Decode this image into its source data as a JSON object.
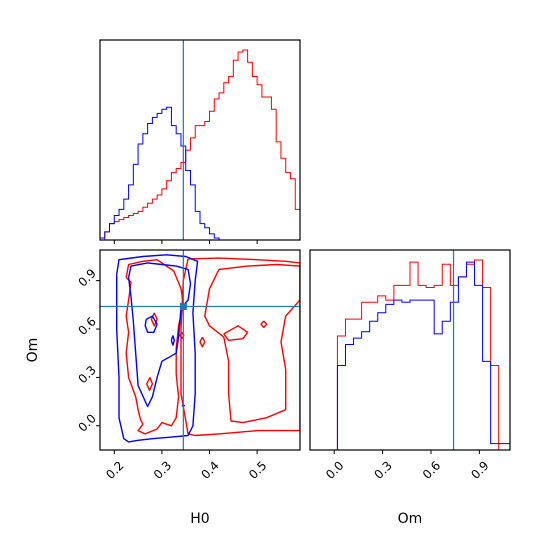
{
  "chart_data": {
    "type": "corner",
    "parameters": [
      "H0",
      "Om"
    ],
    "truth": {
      "H0": 0.345,
      "Om": 0.74
    },
    "colors": {
      "series_a": "#ff0000",
      "series_b": "#0000ff",
      "truth": "#1f77b4"
    },
    "panels": [
      {
        "id": "hist-h0",
        "type": "histogram",
        "xlim": [
          0.17,
          0.59
        ],
        "bin_edges": [
          0.17,
          0.18,
          0.19,
          0.2,
          0.21,
          0.22,
          0.23,
          0.24,
          0.25,
          0.26,
          0.27,
          0.28,
          0.29,
          0.3,
          0.31,
          0.32,
          0.33,
          0.34,
          0.35,
          0.36,
          0.37,
          0.38,
          0.39,
          0.4,
          0.41,
          0.42,
          0.43,
          0.44,
          0.45,
          0.46,
          0.47,
          0.48,
          0.49,
          0.5,
          0.51,
          0.52,
          0.53,
          0.54,
          0.55,
          0.56,
          0.57,
          0.58,
          0.59
        ],
        "series": [
          {
            "name": "",
            "color": "#ff0000",
            "counts": [
              0.0,
              0.04,
              0.08,
              0.09,
              0.1,
              0.11,
              0.12,
              0.13,
              0.14,
              0.16,
              0.18,
              0.2,
              0.22,
              0.25,
              0.29,
              0.33,
              0.35,
              0.38,
              0.44,
              0.5,
              0.56,
              0.56,
              0.58,
              0.63,
              0.69,
              0.72,
              0.77,
              0.8,
              0.88,
              0.92,
              0.93,
              0.87,
              0.8,
              0.76,
              0.7,
              0.7,
              0.64,
              0.48,
              0.4,
              0.33,
              0.3,
              0.15
            ]
          },
          {
            "name": "",
            "color": "#0000ff",
            "counts": [
              0.01,
              0.04,
              0.08,
              0.12,
              0.15,
              0.2,
              0.27,
              0.37,
              0.47,
              0.52,
              0.57,
              0.6,
              0.62,
              0.64,
              0.65,
              0.56,
              0.52,
              0.46,
              0.34,
              0.27,
              0.14,
              0.08,
              0.06,
              0.03,
              0.01,
              0.0,
              0.0,
              0.0,
              0.0,
              0.0,
              0.0,
              0.0,
              0.0,
              0.0,
              0.0,
              0.0,
              0.0,
              0.0,
              0.0,
              0.0,
              0.0,
              0.0
            ]
          }
        ]
      },
      {
        "id": "contour-h0-om",
        "type": "contour",
        "xlim": [
          0.17,
          0.59
        ],
        "ylim": [
          -0.15,
          1.09
        ],
        "xticks": [
          0.2,
          0.3,
          0.4,
          0.5
        ],
        "yticks": [
          0.0,
          0.3,
          0.6,
          0.9
        ],
        "xticklabels": [
          "0.2",
          "0.3",
          "0.4",
          "0.5"
        ],
        "yticklabels": [
          "0.0",
          "0.3",
          "0.6",
          "0.9"
        ],
        "xlabel": "H0",
        "ylabel": "Om",
        "series": [
          {
            "name": "",
            "color": "#ff0000",
            "contours": [
              [
                [
                  0.355,
                  1.035
                ],
                [
                  0.42,
                  1.04
                ],
                [
                  0.5,
                  1.03
                ],
                [
                  0.56,
                  1.02
                ],
                [
                  0.59,
                  1.01
                ],
                [
                  0.59,
                  -0.03
                ],
                [
                  0.5,
                  -0.03
                ],
                [
                  0.42,
                  -0.05
                ],
                [
                  0.37,
                  -0.06
                ],
                [
                  0.355,
                  -0.05
                ],
                [
                  0.34,
                  0.2
                ],
                [
                  0.34,
                  0.6
                ],
                [
                  0.345,
                  0.9
                ],
                [
                  0.355,
                  1.035
                ]
              ],
              [
                [
                  0.42,
                  0.97
                ],
                [
                  0.48,
                  0.99
                ],
                [
                  0.54,
                  1.0
                ],
                [
                  0.59,
                  0.99
                ],
                [
                  0.59,
                  0.78
                ],
                [
                  0.56,
                  0.68
                ],
                [
                  0.55,
                  0.52
                ],
                [
                  0.56,
                  0.35
                ],
                [
                  0.56,
                  0.1
                ],
                [
                  0.52,
                  0.05
                ],
                [
                  0.47,
                  0.02
                ],
                [
                  0.445,
                  0.03
                ],
                [
                  0.44,
                  0.2
                ],
                [
                  0.44,
                  0.4
                ],
                [
                  0.43,
                  0.55
                ],
                [
                  0.4,
                  0.62
                ],
                [
                  0.39,
                  0.68
                ],
                [
                  0.4,
                  0.85
                ],
                [
                  0.42,
                  0.97
                ]
              ],
              [
                [
                  0.43,
                  0.57
                ],
                [
                  0.46,
                  0.62
                ],
                [
                  0.48,
                  0.58
                ],
                [
                  0.47,
                  0.54
                ],
                [
                  0.44,
                  0.53
                ],
                [
                  0.43,
                  0.57
                ]
              ],
              [
                [
                  0.514,
                  0.65
                ],
                [
                  0.52,
                  0.63
                ],
                [
                  0.514,
                  0.61
                ],
                [
                  0.508,
                  0.63
                ],
                [
                  0.514,
                  0.65
                ]
              ],
              [
                [
                  0.385,
                  0.55
                ],
                [
                  0.39,
                  0.52
                ],
                [
                  0.385,
                  0.49
                ],
                [
                  0.38,
                  0.52
                ],
                [
                  0.385,
                  0.55
                ]
              ],
              [
                [
                  0.225,
                  0.92
                ],
                [
                  0.235,
                  0.89
                ],
                [
                  0.23,
                  0.78
                ],
                [
                  0.225,
                  0.68
                ],
                [
                  0.23,
                  0.58
                ],
                [
                  0.225,
                  0.45
                ],
                [
                  0.23,
                  0.3
                ],
                [
                  0.245,
                  0.18
                ],
                [
                  0.25,
                  0.1
                ],
                [
                  0.255,
                  0.04
                ],
                [
                  0.26,
                  0.01
                ],
                [
                  0.25,
                  -0.03
                ],
                [
                  0.265,
                  -0.05
                ],
                [
                  0.29,
                  -0.02
                ],
                [
                  0.3,
                  0.02
                ],
                [
                  0.32,
                  0.0
                ],
                [
                  0.33,
                  0.05
                ],
                [
                  0.335,
                  0.18
                ],
                [
                  0.33,
                  0.32
                ],
                [
                  0.33,
                  0.48
                ],
                [
                  0.335,
                  0.62
                ],
                [
                  0.345,
                  0.75
                ],
                [
                  0.34,
                  0.85
                ],
                [
                  0.325,
                  0.96
                ],
                [
                  0.29,
                  1.03
                ],
                [
                  0.26,
                  1.02
                ],
                [
                  0.23,
                  1.0
                ],
                [
                  0.225,
                  0.92
                ]
              ],
              [
                [
                  0.284,
                  0.7
                ],
                [
                  0.29,
                  0.66
                ],
                [
                  0.284,
                  0.62
                ],
                [
                  0.278,
                  0.66
                ],
                [
                  0.284,
                  0.7
                ]
              ],
              [
                [
                  0.275,
                  0.3
                ],
                [
                  0.28,
                  0.26
                ],
                [
                  0.274,
                  0.22
                ],
                [
                  0.268,
                  0.26
                ],
                [
                  0.275,
                  0.3
                ]
              ],
              [
                [
                  0.342,
                  0.58
                ],
                [
                  0.346,
                  0.56
                ],
                [
                  0.342,
                  0.54
                ],
                [
                  0.338,
                  0.56
                ],
                [
                  0.342,
                  0.58
                ]
              ]
            ]
          },
          {
            "name": "",
            "color": "#0000ff",
            "contours": [
              [
                [
                  0.205,
                  0.94
                ],
                [
                  0.21,
                  1.03
                ],
                [
                  0.26,
                  1.05
                ],
                [
                  0.31,
                  1.06
                ],
                [
                  0.35,
                  1.05
                ],
                [
                  0.375,
                  1.02
                ],
                [
                  0.37,
                  0.9
                ],
                [
                  0.365,
                  0.7
                ],
                [
                  0.37,
                  0.45
                ],
                [
                  0.37,
                  0.2
                ],
                [
                  0.365,
                  0.0
                ],
                [
                  0.355,
                  -0.06
                ],
                [
                  0.32,
                  -0.07
                ],
                [
                  0.28,
                  -0.08
                ],
                [
                  0.25,
                  -0.09
                ],
                [
                  0.23,
                  -0.1
                ],
                [
                  0.22,
                  -0.08
                ],
                [
                  0.21,
                  0.05
                ],
                [
                  0.21,
                  0.3
                ],
                [
                  0.205,
                  0.6
                ],
                [
                  0.205,
                  0.94
                ]
              ],
              [
                [
                  0.23,
                  0.92
                ],
                [
                  0.235,
                  0.99
                ],
                [
                  0.27,
                  1.01
                ],
                [
                  0.3,
                  1.0
                ],
                [
                  0.33,
                  0.99
                ],
                [
                  0.355,
                  0.97
                ],
                [
                  0.36,
                  0.88
                ],
                [
                  0.355,
                  0.78
                ],
                [
                  0.34,
                  0.73
                ],
                [
                  0.335,
                  0.55
                ],
                [
                  0.33,
                  0.45
                ],
                [
                  0.3,
                  0.4
                ],
                [
                  0.29,
                  0.3
                ],
                [
                  0.28,
                  0.18
                ],
                [
                  0.27,
                  0.12
                ],
                [
                  0.25,
                  0.25
                ],
                [
                  0.245,
                  0.45
                ],
                [
                  0.24,
                  0.65
                ],
                [
                  0.235,
                  0.8
                ],
                [
                  0.23,
                  0.92
                ]
              ],
              [
                [
                  0.267,
                  0.66
                ],
                [
                  0.28,
                  0.68
                ],
                [
                  0.29,
                  0.63
                ],
                [
                  0.283,
                  0.58
                ],
                [
                  0.27,
                  0.58
                ],
                [
                  0.265,
                  0.62
                ],
                [
                  0.267,
                  0.66
                ]
              ],
              [
                [
                  0.323,
                  0.56
                ],
                [
                  0.326,
                  0.53
                ],
                [
                  0.323,
                  0.5
                ],
                [
                  0.32,
                  0.53
                ],
                [
                  0.323,
                  0.56
                ]
              ],
              [
                [
                  0.345,
                  0.12
                ],
                [
                  0.347,
                  0.125
                ],
                [
                  0.345,
                  0.13
                ],
                [
                  0.343,
                  0.125
                ],
                [
                  0.345,
                  0.12
                ]
              ]
            ]
          }
        ]
      },
      {
        "id": "hist-om",
        "type": "histogram",
        "xlim": [
          -0.15,
          1.09
        ],
        "xticks": [
          0.0,
          0.3,
          0.6,
          0.9
        ],
        "xticklabels": [
          "0.0",
          "0.3",
          "0.6",
          "0.9"
        ],
        "xlabel": "Om",
        "bin_edges": [
          -0.15,
          -0.09,
          -0.03,
          0.02,
          0.07,
          0.12,
          0.17,
          0.22,
          0.27,
          0.32,
          0.37,
          0.42,
          0.47,
          0.52,
          0.57,
          0.62,
          0.67,
          0.72,
          0.77,
          0.82,
          0.87,
          0.92,
          0.97,
          1.02,
          1.09
        ],
        "series": [
          {
            "name": "",
            "color": "#ff0000",
            "counts": [
              0.0,
              0.0,
              0.0,
              0.54,
              0.62,
              0.62,
              0.7,
              0.7,
              0.73,
              0.71,
              0.78,
              0.78,
              0.89,
              0.78,
              0.77,
              0.78,
              0.88,
              0.78,
              0.82,
              0.88,
              0.9,
              0.77,
              0.4,
              0.0
            ]
          },
          {
            "name": "",
            "color": "#0000ff",
            "counts": [
              0.0,
              0.0,
              0.0,
              0.4,
              0.5,
              0.53,
              0.56,
              0.61,
              0.65,
              0.69,
              0.71,
              0.7,
              0.71,
              0.71,
              0.71,
              0.55,
              0.61,
              0.7,
              0.82,
              0.89,
              0.78,
              0.42,
              0.03,
              0.03
            ]
          }
        ]
      }
    ]
  }
}
